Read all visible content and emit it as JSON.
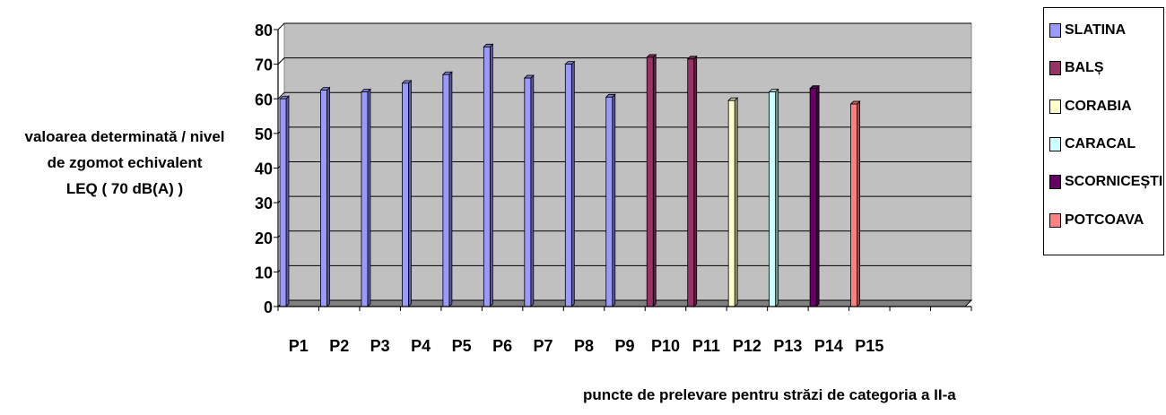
{
  "chart_data": {
    "type": "bar",
    "title": "",
    "ylabel": "valoarea determinată / nivel\nde zgomot echivalent\nLEQ ( 70 dB(A) )",
    "xlabel": "puncte de prelevare pentru străzi de  categoria a II-a",
    "ylim": [
      0,
      80
    ],
    "yticks": [
      0,
      10,
      20,
      30,
      40,
      50,
      60,
      70,
      80
    ],
    "grid": true,
    "legend_position": "right",
    "background_color": "#c0c0c0",
    "categories": [
      "P1",
      "P2",
      "P3",
      "P4",
      "P5",
      "P6",
      "P7",
      "P8",
      "P9",
      "P10",
      "P11",
      "P12",
      "P13",
      "P14",
      "P15"
    ],
    "series": [
      {
        "name": "SLATINA",
        "color": "#9999ff",
        "values": [
          60,
          62.5,
          62,
          64.5,
          67,
          75,
          66,
          70,
          60.5,
          null,
          null,
          null,
          null,
          null,
          null
        ]
      },
      {
        "name": "BALȘ",
        "color": "#993366",
        "values": [
          null,
          null,
          null,
          null,
          null,
          null,
          null,
          null,
          null,
          72,
          71.5,
          null,
          null,
          null,
          null
        ]
      },
      {
        "name": "CORABIA",
        "color": "#ffffcc",
        "values": [
          null,
          null,
          null,
          null,
          null,
          null,
          null,
          null,
          null,
          null,
          null,
          59.5,
          null,
          null,
          null
        ]
      },
      {
        "name": "CARACAL",
        "color": "#ccffff",
        "values": [
          null,
          null,
          null,
          null,
          null,
          null,
          null,
          null,
          null,
          null,
          null,
          null,
          62,
          null,
          null
        ]
      },
      {
        "name": "SCORNICEȘTI",
        "color": "#660066",
        "values": [
          null,
          null,
          null,
          null,
          null,
          null,
          null,
          null,
          null,
          null,
          null,
          null,
          null,
          63,
          null
        ]
      },
      {
        "name": "POTCOAVA",
        "color": "#ff8080",
        "values": [
          null,
          null,
          null,
          null,
          null,
          null,
          null,
          null,
          null,
          null,
          null,
          null,
          null,
          null,
          58.5
        ]
      }
    ]
  }
}
